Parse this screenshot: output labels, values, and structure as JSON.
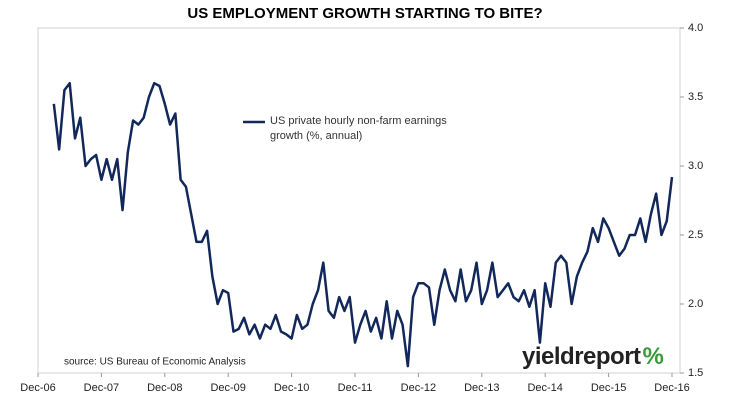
{
  "chart_data": {
    "type": "line",
    "title": "US EMPLOYMENT GROWTH STARTING TO BITE?",
    "source": "source: US Bureau of Economic Analysis",
    "logo": {
      "text": "yieldreport",
      "mark": "%"
    },
    "categories": [
      "Dec-06",
      null,
      null,
      null,
      null,
      null,
      null,
      null,
      null,
      null,
      null,
      null,
      "Dec-07",
      null,
      null,
      null,
      null,
      null,
      null,
      null,
      null,
      null,
      null,
      null,
      "Dec-08",
      null,
      null,
      null,
      null,
      null,
      null,
      null,
      null,
      null,
      null,
      null,
      "Dec-09",
      null,
      null,
      null,
      null,
      null,
      null,
      null,
      null,
      null,
      null,
      null,
      "Dec-10",
      null,
      null,
      null,
      null,
      null,
      null,
      null,
      null,
      null,
      null,
      null,
      "Dec-11",
      null,
      null,
      null,
      null,
      null,
      null,
      null,
      null,
      null,
      null,
      null,
      "Dec-12",
      null,
      null,
      null,
      null,
      null,
      null,
      null,
      null,
      null,
      null,
      null,
      "Dec-13",
      null,
      null,
      null,
      null,
      null,
      null,
      null,
      null,
      null,
      null,
      null,
      "Dec-14",
      null,
      null,
      null,
      null,
      null,
      null,
      null,
      null,
      null,
      null,
      null,
      "Dec-15",
      null,
      null,
      null,
      null,
      null,
      null,
      null,
      null,
      null,
      null,
      null,
      "Dec-16"
    ],
    "series": [
      {
        "name": "US private hourly non-farm earnings growth (%, annual)",
        "color": "#12285a",
        "values": [
          null,
          null,
          null,
          3.45,
          3.12,
          3.55,
          3.6,
          3.2,
          3.35,
          3.0,
          3.05,
          3.08,
          2.9,
          3.05,
          2.9,
          3.05,
          2.68,
          3.1,
          3.33,
          3.3,
          3.35,
          3.5,
          3.6,
          3.58,
          3.45,
          3.3,
          3.38,
          2.9,
          2.85,
          2.65,
          2.45,
          2.45,
          2.53,
          2.2,
          2.0,
          2.1,
          2.08,
          1.8,
          1.82,
          1.9,
          1.78,
          1.85,
          1.75,
          1.85,
          1.82,
          1.92,
          1.8,
          1.78,
          1.75,
          1.92,
          1.82,
          1.85,
          2.0,
          2.1,
          2.3,
          1.95,
          1.9,
          2.05,
          1.95,
          2.05,
          1.72,
          1.85,
          1.95,
          1.8,
          1.9,
          1.75,
          2.02,
          1.75,
          1.95,
          1.85,
          1.55,
          2.05,
          2.15,
          2.15,
          2.12,
          1.85,
          2.1,
          2.25,
          2.1,
          2.02,
          2.25,
          2.02,
          2.1,
          2.3,
          2.0,
          2.1,
          2.3,
          2.05,
          2.1,
          2.15,
          2.05,
          2.02,
          2.1,
          1.98,
          2.1,
          1.72,
          2.15,
          1.98,
          2.3,
          2.35,
          2.3,
          2.0,
          2.2,
          2.3,
          2.38,
          2.55,
          2.45,
          2.62,
          2.55,
          2.45,
          2.35,
          2.4,
          2.5,
          2.5,
          2.62,
          2.45,
          2.65,
          2.8,
          2.5,
          2.6,
          2.92
        ]
      }
    ],
    "ylim": [
      1.5,
      4.0
    ],
    "yticks": [
      1.5,
      {
        "value": 2,
        "label": "2.0"
      },
      2.5,
      {
        "value": 3,
        "label": "3.0"
      },
      3.5,
      {
        "value": 4,
        "label": "4.0"
      }
    ],
    "grid": false
  }
}
